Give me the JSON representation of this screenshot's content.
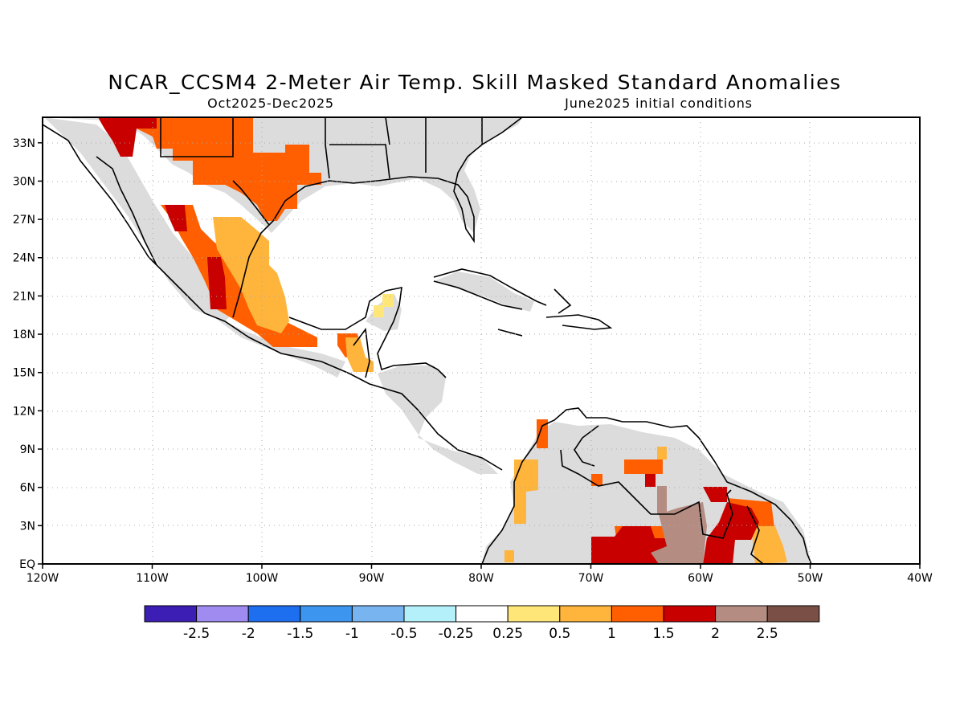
{
  "title": "NCAR_CCSM4 2-Meter Air Temp. Skill Masked Standard Anomalies",
  "period": "Oct2025-Dec2025",
  "init": "June2025 initial conditions",
  "lon_labels": [
    "120W",
    "110W",
    "100W",
    "90W",
    "80W",
    "70W",
    "60W",
    "50W",
    "40W"
  ],
  "lat_labels": [
    "EQ",
    "3N",
    "6N",
    "9N",
    "12N",
    "15N",
    "18N",
    "21N",
    "24N",
    "27N",
    "30N",
    "33N"
  ],
  "lon_values": [
    -120,
    -110,
    -100,
    -90,
    -80,
    -70,
    -60,
    -50,
    -40
  ],
  "lat_values": [
    0,
    3,
    6,
    9,
    12,
    15,
    18,
    21,
    24,
    27,
    30,
    33
  ],
  "map_extent": {
    "lon": [
      -120,
      -40
    ],
    "lat": [
      0,
      35
    ]
  },
  "colors": {
    "land_nonsignificant": "#dcdcdc",
    "frame": "#000000",
    "grid": "#aaaaaa"
  },
  "colorbar": {
    "colors": [
      "#3c1eb4",
      "#a08cf0",
      "#1e6ef0",
      "#3c96f0",
      "#78b4f0",
      "#b4f0fa",
      "#ffffff",
      "#ffe678",
      "#ffb43c",
      "#ff5f00",
      "#c80000",
      "#b48c82",
      "#7a5046"
    ],
    "labels": [
      "-2.5",
      "-2",
      "-1.5",
      "-1",
      "-0.5",
      "-0.25",
      "0.25",
      "0.5",
      "1",
      "1.5",
      "2",
      "2.5"
    ]
  }
}
